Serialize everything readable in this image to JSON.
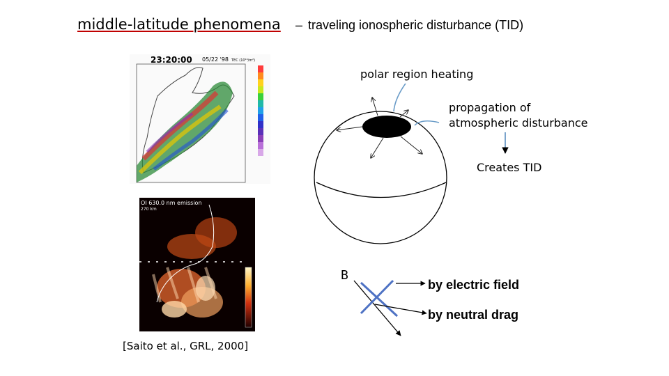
{
  "title": {
    "main": "middle-latitude phenomena",
    "separator": "–",
    "sub": "traveling ionospheric disturbance (TID)"
  },
  "tec_map": {
    "time": "23:20:00",
    "date": "05/22 '98",
    "unit": "TEC (10¹⁶/m²)"
  },
  "airglow_map": {
    "header_line1": "OI 630.0 nm emission",
    "header_line2": "270 km"
  },
  "diagram": {
    "polar_heating": "polar region heating",
    "propagation": "propagation of\natmospheric disturbance",
    "creates_tid": "Creates TID",
    "b_label": "B",
    "electric_field": "by electric field",
    "neutral_drag": "by neutral drag"
  },
  "citation": "[Saito et al., GRL, 2000]"
}
